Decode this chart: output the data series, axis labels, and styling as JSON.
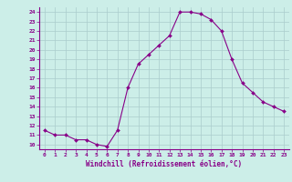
{
  "x": [
    0,
    1,
    2,
    3,
    4,
    5,
    6,
    7,
    8,
    9,
    10,
    11,
    12,
    13,
    14,
    15,
    16,
    17,
    18,
    19,
    20,
    21,
    22,
    23
  ],
  "y": [
    11.5,
    11.0,
    11.0,
    10.5,
    10.5,
    10.0,
    9.8,
    11.5,
    16.0,
    18.5,
    19.5,
    20.5,
    21.5,
    24.0,
    24.0,
    23.8,
    23.2,
    22.0,
    19.0,
    16.5,
    15.5,
    14.5,
    14.0,
    13.5
  ],
  "line_color": "#880088",
  "marker": "D",
  "marker_size": 2.0,
  "bg_color": "#cceee8",
  "grid_color": "#aacccc",
  "xlabel": "Windchill (Refroidissement éolien,°C)",
  "xlabel_color": "#880088",
  "tick_color": "#880088",
  "axis_color": "#880088",
  "xlim": [
    -0.5,
    23.5
  ],
  "ylim": [
    9.5,
    24.5
  ],
  "yticks": [
    10,
    11,
    12,
    13,
    14,
    15,
    16,
    17,
    18,
    19,
    20,
    21,
    22,
    23,
    24
  ],
  "xticks": [
    0,
    1,
    2,
    3,
    4,
    5,
    6,
    7,
    8,
    9,
    10,
    11,
    12,
    13,
    14,
    15,
    16,
    17,
    18,
    19,
    20,
    21,
    22,
    23
  ],
  "xtick_labels": [
    "0",
    "1",
    "2",
    "3",
    "4",
    "5",
    "6",
    "7",
    "8",
    "9",
    "10",
    "11",
    "12",
    "13",
    "14",
    "15",
    "16",
    "17",
    "18",
    "19",
    "20",
    "21",
    "22",
    "23"
  ]
}
